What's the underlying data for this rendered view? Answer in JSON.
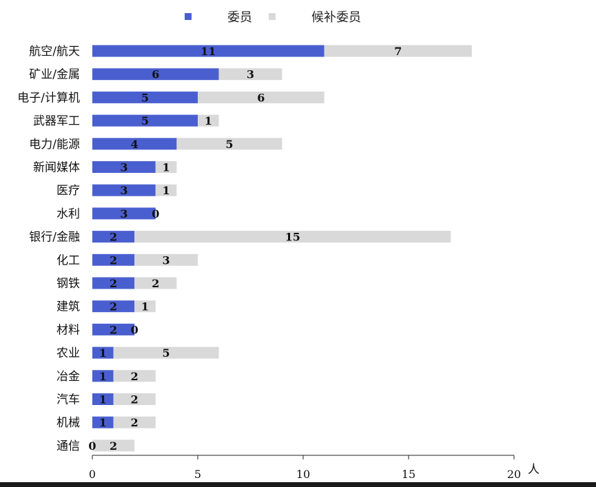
{
  "chart_data": {
    "type": "bar",
    "orientation": "horizontal",
    "stacked": true,
    "categories": [
      "航空/航天",
      "矿业/金属",
      "电子/计算机",
      "武器军工",
      "电力/能源",
      "新闻媒体",
      "医疗",
      "水利",
      "银行/金融",
      "化工",
      "钢铁",
      "建筑",
      "材料",
      "农业",
      "冶金",
      "汽车",
      "机械",
      "通信"
    ],
    "series": [
      {
        "name": "委员",
        "color": "#4a5fcf",
        "values": [
          11,
          6,
          5,
          5,
          4,
          3,
          3,
          3,
          2,
          2,
          2,
          2,
          2,
          1,
          1,
          1,
          1,
          0
        ]
      },
      {
        "name": "候补委员",
        "color": "#d9d9d9",
        "values": [
          7,
          3,
          6,
          1,
          5,
          1,
          1,
          0,
          15,
          3,
          2,
          1,
          0,
          5,
          2,
          2,
          2,
          2
        ]
      }
    ],
    "xticks": [
      0,
      5,
      10,
      15,
      20
    ],
    "xlim": [
      0,
      20
    ],
    "xunit": "人",
    "legend_position": "top",
    "grid": false
  }
}
